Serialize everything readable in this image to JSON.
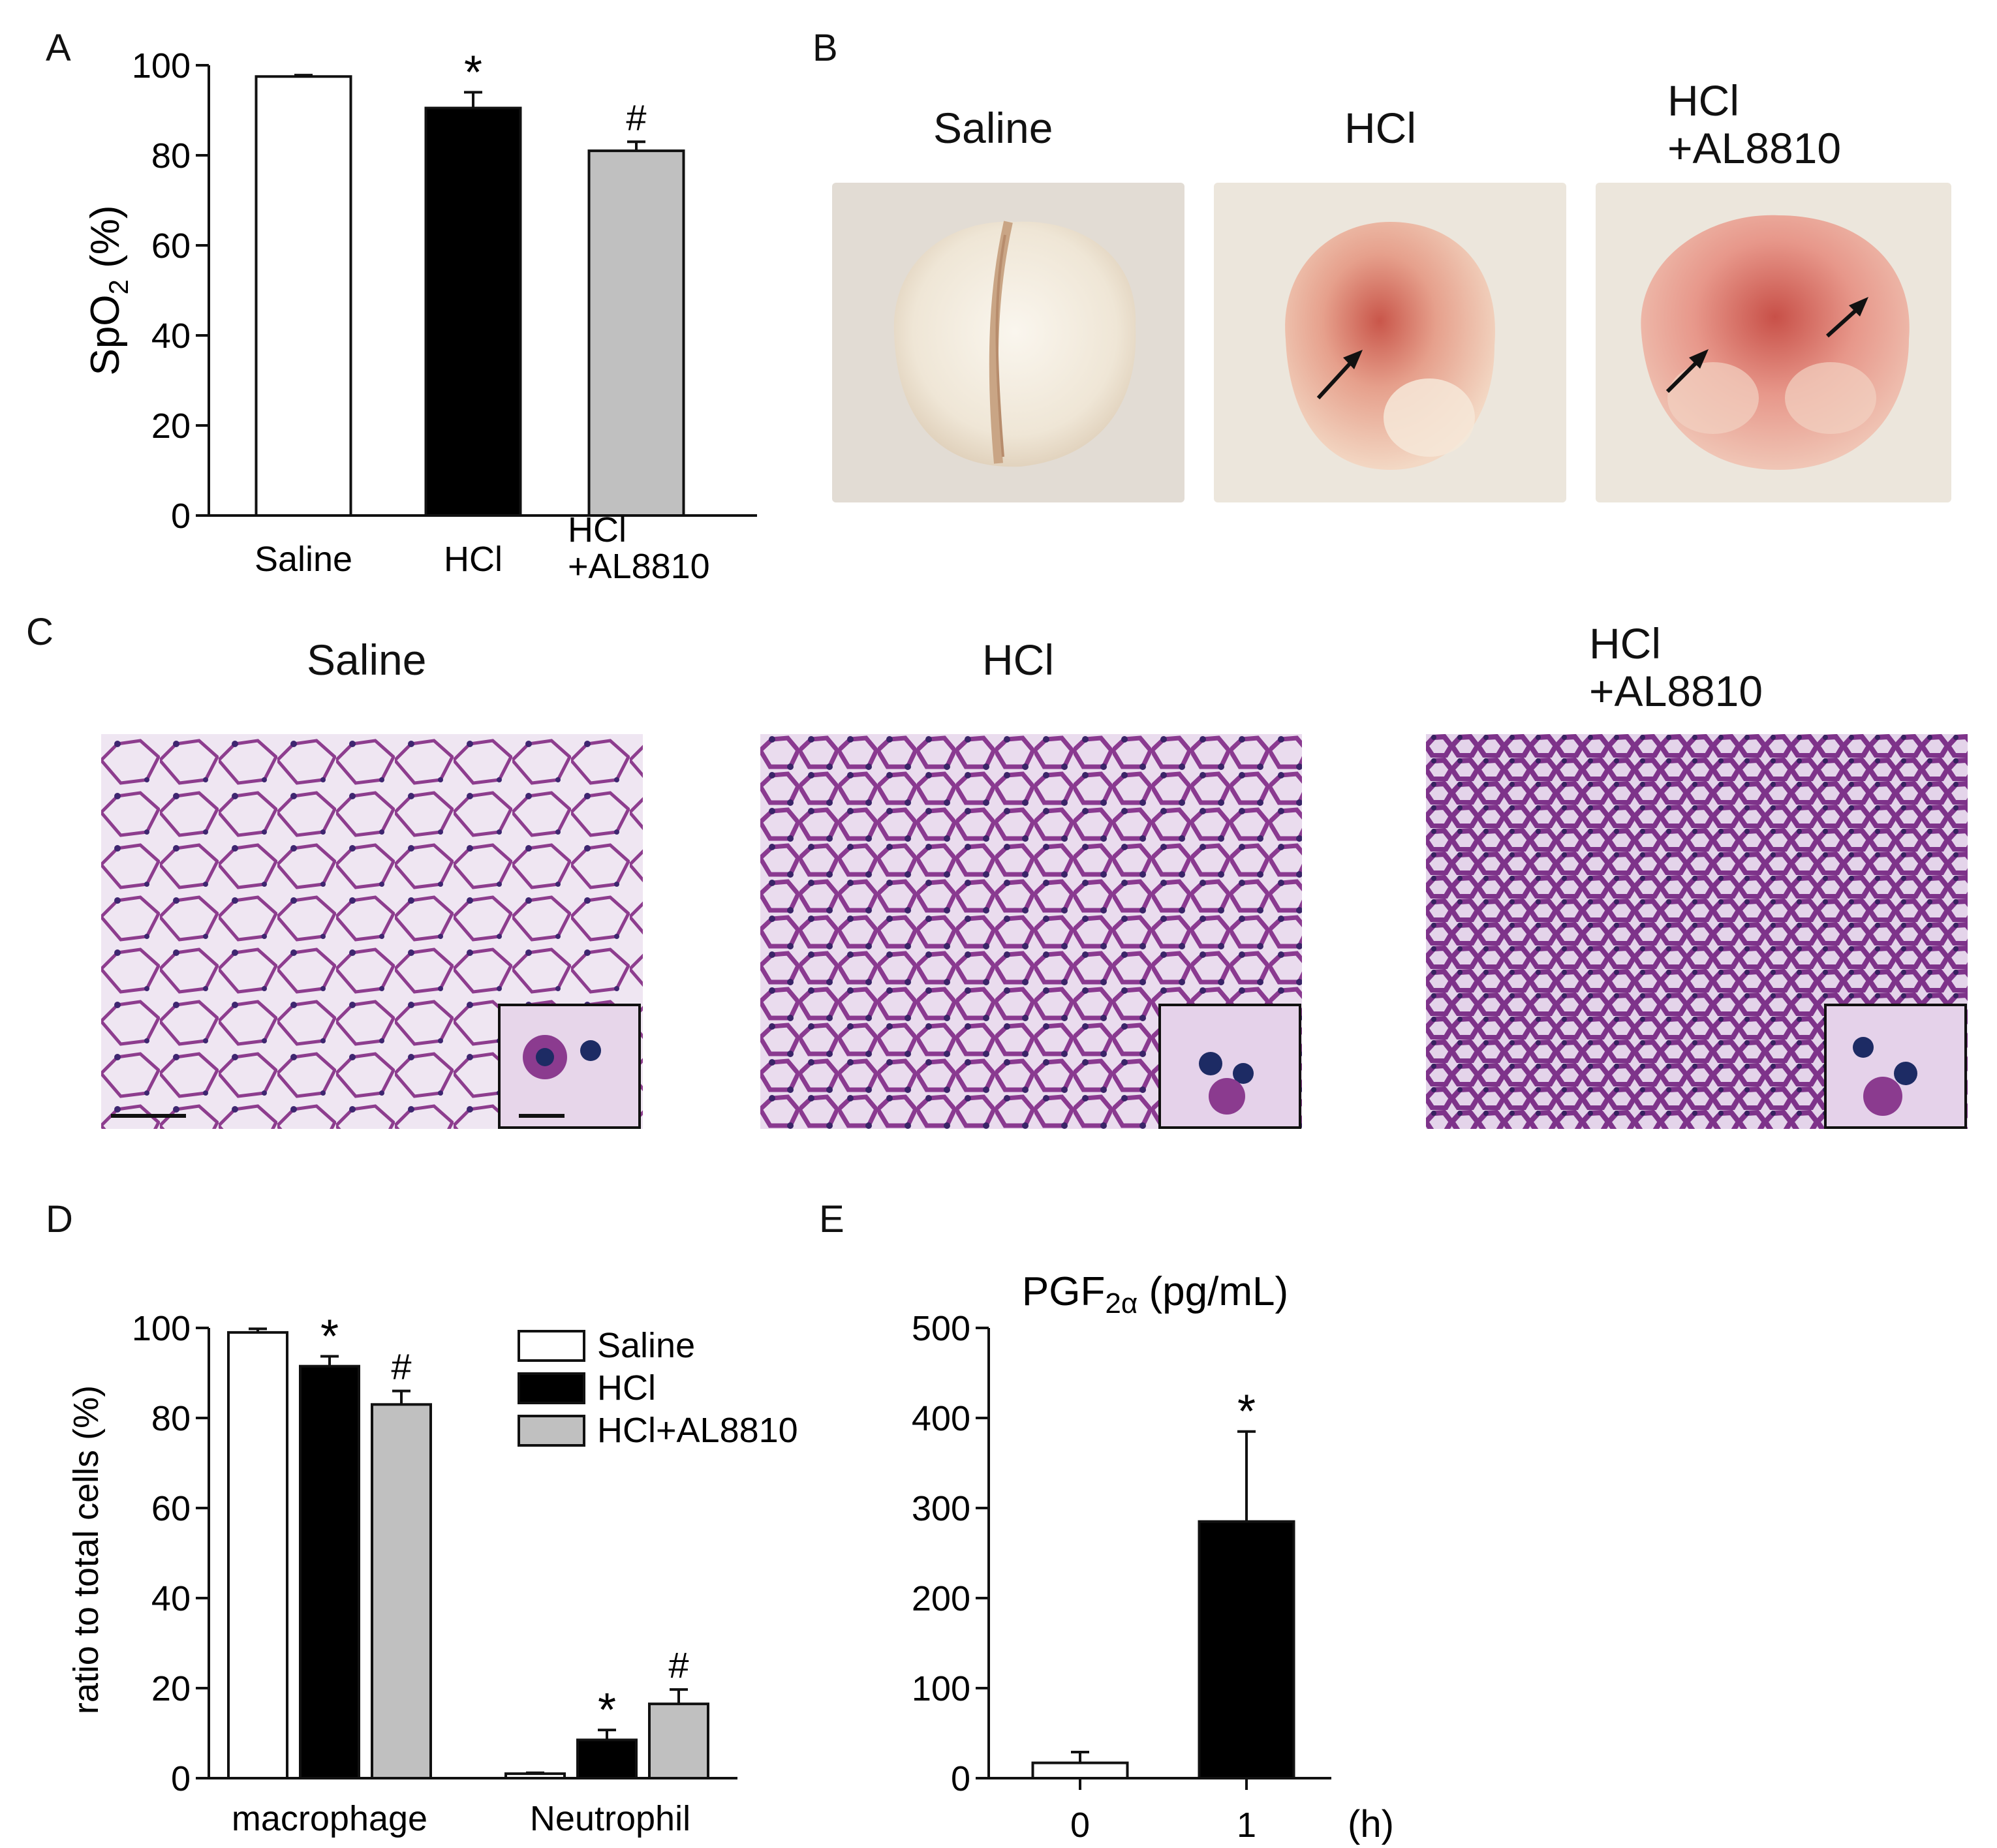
{
  "panels": {
    "A": {
      "letter": "A"
    },
    "B": {
      "letter": "B",
      "titles": [
        "Saline",
        "HCl",
        "HCl\n+AL8810"
      ]
    },
    "C": {
      "letter": "C",
      "titles": [
        "Saline",
        "HCl",
        "HCl\n+AL8810"
      ]
    },
    "D": {
      "letter": "D"
    },
    "E": {
      "letter": "E"
    }
  },
  "colors": {
    "saline": "#ffffff",
    "hcl": "#000000",
    "hcl_al8810": "#c0c0c0",
    "axis": "#111111"
  },
  "chart_data": [
    {
      "panel": "A",
      "type": "bar",
      "ylabel": "SpO2 (%)",
      "ylabel_parts": [
        "SpO",
        "2",
        " (%)"
      ],
      "ylim": [
        0,
        100
      ],
      "yticks": [
        0,
        20,
        40,
        60,
        80,
        100
      ],
      "categories": [
        "Saline",
        "HCl",
        "HCl\n+AL8810"
      ],
      "values": [
        97.5,
        90.5,
        81
      ],
      "errors": [
        0.3,
        3.5,
        2
      ],
      "annotations": [
        "",
        "*",
        "#"
      ]
    },
    {
      "panel": "D",
      "type": "bar",
      "ylabel": "ratio to total cells (%)",
      "ylim": [
        0,
        100
      ],
      "yticks": [
        0,
        20,
        40,
        60,
        80,
        100
      ],
      "categories": [
        "macrophage",
        "Neutrophil"
      ],
      "series": [
        {
          "name": "Saline",
          "values": [
            99,
            1
          ],
          "errors": [
            0.8,
            0.2
          ],
          "annotations": [
            "",
            ""
          ]
        },
        {
          "name": "HCl",
          "values": [
            91.5,
            8.5
          ],
          "errors": [
            2.2,
            2.2
          ],
          "annotations": [
            "*",
            "*"
          ]
        },
        {
          "name": "HCl+AL8810",
          "values": [
            83,
            16.5
          ],
          "errors": [
            3,
            3.2
          ],
          "annotations": [
            "#",
            "#"
          ]
        }
      ],
      "legend": "top-right"
    },
    {
      "panel": "E",
      "type": "bar",
      "title": "PGF2α (pg/mL)",
      "title_parts": [
        "PGF",
        "2α",
        " (pg/mL)"
      ],
      "xlabel": "(h)",
      "ylim": [
        0,
        500
      ],
      "yticks": [
        0,
        100,
        200,
        300,
        400,
        500
      ],
      "categories": [
        "0",
        "1"
      ],
      "values": [
        17,
        285
      ],
      "errors": [
        12,
        100
      ],
      "annotations": [
        "",
        "*"
      ]
    }
  ]
}
